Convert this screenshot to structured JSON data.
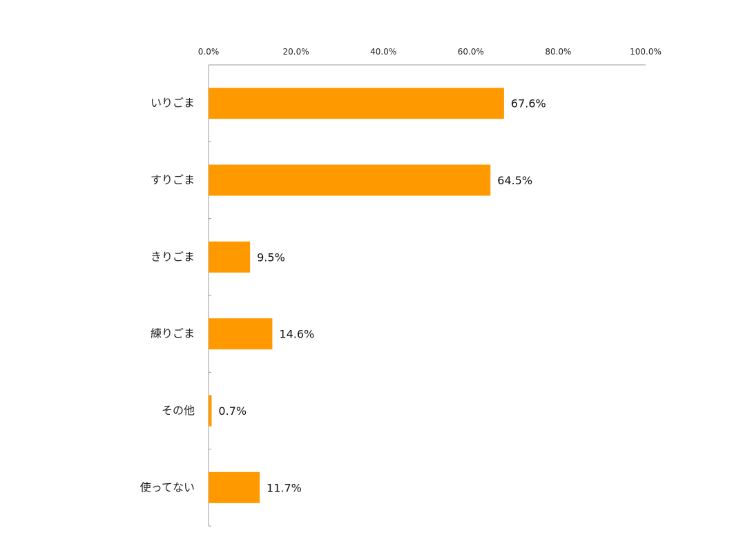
{
  "chart_data": {
    "type": "bar",
    "orientation": "horizontal",
    "categories": [
      "いりごま",
      "すりごま",
      "きりごま",
      "練りごま",
      "その他",
      "使ってない"
    ],
    "values": [
      67.6,
      64.5,
      9.5,
      14.6,
      0.7,
      11.7
    ],
    "data_labels": [
      "67.6%",
      "64.5%",
      "9.5%",
      "14.6%",
      "0.7%",
      "11.7%"
    ],
    "x_ticks": [
      "0.0%",
      "20.0%",
      "40.0%",
      "60.0%",
      "80.0%",
      "100.0%"
    ],
    "xlim": [
      0,
      100
    ],
    "x_axis_position": "top",
    "grid": false,
    "legend": "none",
    "bar_color": "#FF9900",
    "axis_color": "#999999"
  }
}
